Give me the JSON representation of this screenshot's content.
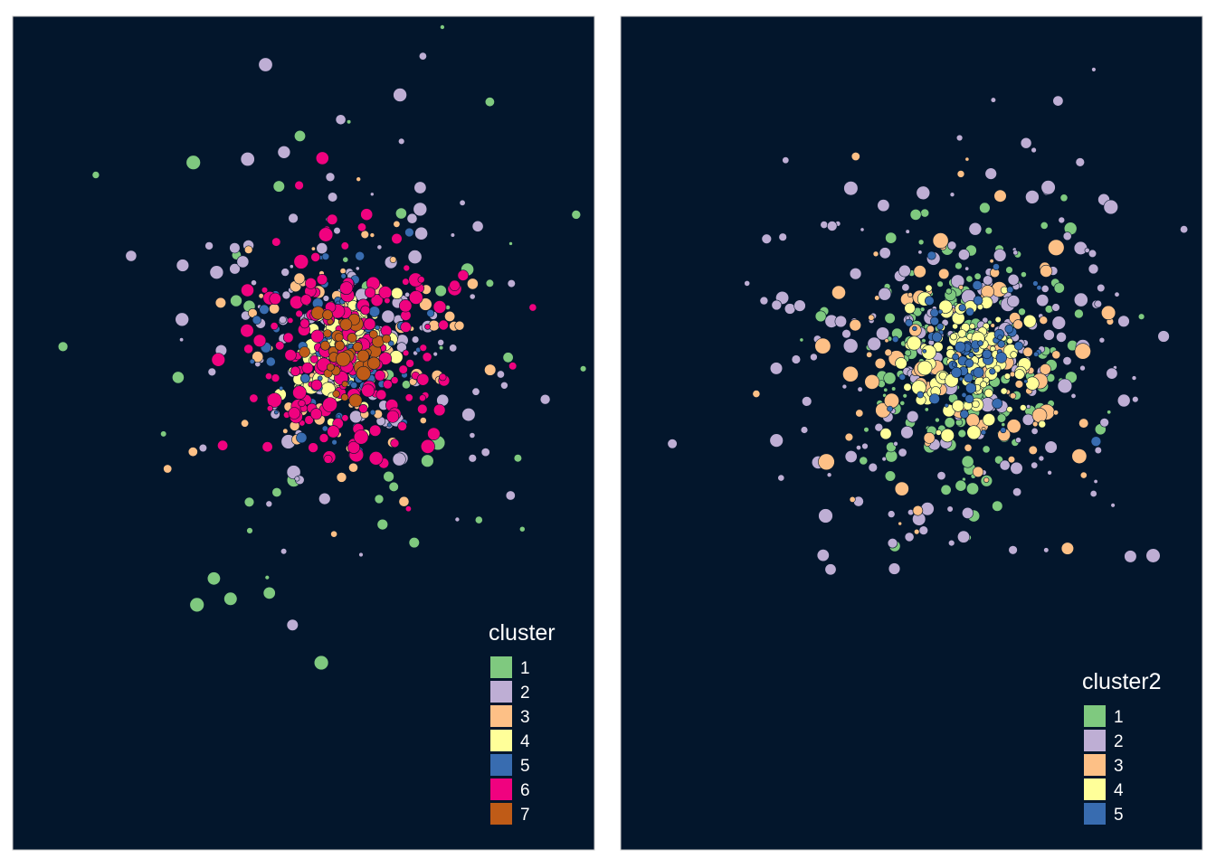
{
  "colors": {
    "background": "#03162c",
    "frame": "#c8c8c8",
    "text": "#ffffff"
  },
  "chart_data": [
    {
      "type": "scatter",
      "title": "",
      "legend": {
        "title": "cluster",
        "position": "bottom-right",
        "entries": [
          {
            "label": "1",
            "color": "#7fc97f"
          },
          {
            "label": "2",
            "color": "#beaed4"
          },
          {
            "label": "3",
            "color": "#fdc086"
          },
          {
            "label": "4",
            "color": "#ffff99"
          },
          {
            "label": "5",
            "color": "#386cb0"
          },
          {
            "label": "6",
            "color": "#f0027f"
          },
          {
            "label": "7",
            "color": "#bf5b17"
          }
        ]
      },
      "axes": "none",
      "grid": false,
      "seed": 17,
      "groups": [
        {
          "category": "1",
          "n": 60,
          "r": [
            2,
            8
          ],
          "spread": 0.42
        },
        {
          "category": "2",
          "n": 140,
          "r": [
            2,
            8
          ],
          "spread": 0.26
        },
        {
          "category": "3",
          "n": 90,
          "r": [
            2,
            7
          ],
          "spread": 0.18
        },
        {
          "category": "4",
          "n": 90,
          "r": [
            3,
            9
          ],
          "spread": 0.08
        },
        {
          "category": "5",
          "n": 80,
          "r": [
            2,
            6
          ],
          "spread": 0.12
        },
        {
          "category": "6",
          "n": 190,
          "r": [
            3,
            8
          ],
          "spread": 0.16
        },
        {
          "category": "7",
          "n": 40,
          "r": [
            3,
            8
          ],
          "spread": 0.06
        }
      ]
    },
    {
      "type": "scatter",
      "title": "",
      "legend": {
        "title": "cluster2",
        "position": "bottom-right",
        "entries": [
          {
            "label": "1",
            "color": "#7fc97f"
          },
          {
            "label": "2",
            "color": "#beaed4"
          },
          {
            "label": "3",
            "color": "#fdc086"
          },
          {
            "label": "4",
            "color": "#ffff99"
          },
          {
            "label": "5",
            "color": "#386cb0"
          }
        ]
      },
      "axes": "none",
      "grid": false,
      "seed": 29,
      "groups": [
        {
          "category": "1",
          "n": 200,
          "r": [
            2,
            7
          ],
          "spread": 0.17
        },
        {
          "category": "2",
          "n": 230,
          "r": [
            2,
            8
          ],
          "spread": 0.3
        },
        {
          "category": "3",
          "n": 110,
          "r": [
            2,
            9
          ],
          "spread": 0.24
        },
        {
          "category": "4",
          "n": 120,
          "r": [
            3,
            8
          ],
          "spread": 0.09
        },
        {
          "category": "5",
          "n": 70,
          "r": [
            2,
            6
          ],
          "spread": 0.1
        }
      ]
    }
  ]
}
